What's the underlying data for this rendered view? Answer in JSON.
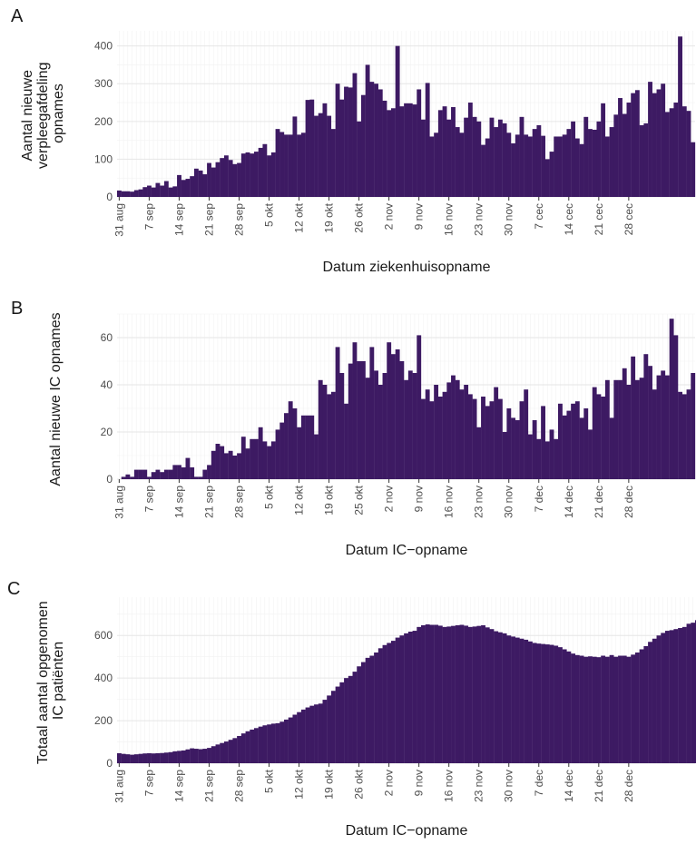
{
  "bar_color": "#3d1a63",
  "chart_data": [
    {
      "panel": "A",
      "type": "bar",
      "xlabel": "Datum ziekenhuisopname",
      "ylabel": [
        "Aantal nieuwe",
        "verpleegafdeling",
        "opnames"
      ],
      "ylim": [
        0,
        440
      ],
      "yticks": [
        0,
        100,
        200,
        300,
        400
      ],
      "xticks": [
        "31 aug",
        "7 sep",
        "14 sep",
        "21 sep",
        "28 sep",
        "5 okt",
        "12 okt",
        "19 okt",
        "26 okt",
        "2 nov",
        "9 nov",
        "16 nov",
        "23 nov",
        "30 nov",
        "7 cec",
        "14 cec",
        "21 cec",
        "28 cec"
      ],
      "grid": true,
      "start_date": "2020-08-31",
      "values": [
        17,
        15,
        15,
        14,
        18,
        20,
        26,
        30,
        25,
        37,
        30,
        42,
        25,
        28,
        58,
        45,
        48,
        55,
        75,
        70,
        60,
        90,
        78,
        92,
        103,
        110,
        98,
        87,
        90,
        115,
        118,
        115,
        120,
        130,
        140,
        110,
        118,
        180,
        172,
        165,
        165,
        213,
        165,
        170,
        257,
        258,
        215,
        222,
        248,
        215,
        180,
        300,
        258,
        292,
        290,
        328,
        200,
        270,
        350,
        305,
        300,
        285,
        255,
        230,
        235,
        400,
        240,
        248,
        248,
        245,
        285,
        205,
        302,
        160,
        170,
        230,
        240,
        205,
        238,
        185,
        170,
        210,
        250,
        212,
        200,
        138,
        155,
        210,
        185,
        205,
        195,
        170,
        142,
        165,
        212,
        165,
        160,
        180,
        190,
        162,
        100,
        120,
        160,
        160,
        165,
        180,
        200,
        155,
        140,
        212,
        180,
        178,
        200,
        248,
        160,
        185,
        218,
        262,
        220,
        250,
        275,
        283,
        190,
        195,
        305,
        275,
        285,
        300,
        225,
        235,
        250,
        425,
        240,
        228,
        145
      ]
    },
    {
      "panel": "B",
      "type": "bar",
      "xlabel": "Datum IC−opname",
      "ylabel": [
        "Aantal nieuwe IC opnames"
      ],
      "ylim": [
        0,
        70
      ],
      "yticks": [
        0,
        20,
        40,
        60
      ],
      "xticks": [
        "31 aug",
        "7 sep",
        "14 sep",
        "21 sep",
        "28 sep",
        "5 okt",
        "12 okt",
        "19 okt",
        "25 okt",
        "2 nov",
        "9 nov",
        "16 nov",
        "23 nov",
        "30 nov",
        "7 dec",
        "14 dec",
        "21 dec",
        "28 dec"
      ],
      "grid": true,
      "start_date": "2020-08-31",
      "values": [
        0,
        1,
        2,
        1,
        4,
        4,
        4,
        1,
        3,
        4,
        3,
        4,
        4,
        6,
        6,
        5,
        9,
        5,
        1,
        1,
        4,
        6,
        12,
        15,
        14,
        11,
        12,
        10,
        11,
        18,
        13,
        17,
        17,
        22,
        16,
        14,
        16,
        21,
        24,
        28,
        33,
        30,
        22,
        27,
        27,
        27,
        19,
        42,
        40,
        36,
        37,
        56,
        45,
        32,
        49,
        58,
        50,
        50,
        43,
        56,
        46,
        40,
        45,
        58,
        53,
        55,
        50,
        42,
        46,
        45,
        61,
        34,
        38,
        33,
        40,
        35,
        37,
        41,
        44,
        42,
        38,
        40,
        36,
        34,
        22,
        35,
        31,
        33,
        39,
        34,
        20,
        30,
        26,
        25,
        33,
        38,
        19,
        25,
        17,
        31,
        16,
        21,
        17,
        32,
        27,
        29,
        32,
        33,
        26,
        30,
        21,
        39,
        36,
        35,
        42,
        26,
        42,
        42,
        47,
        40,
        52,
        42,
        43,
        53,
        48,
        38,
        44,
        46,
        44,
        68,
        61,
        37,
        36,
        38,
        45
      ]
    },
    {
      "panel": "C",
      "type": "bar",
      "xlabel": "Datum IC−opname",
      "ylabel": [
        "Totaal aantal opgenomen",
        "IC patiënten"
      ],
      "ylim": [
        0,
        780
      ],
      "yticks": [
        0,
        200,
        400,
        600
      ],
      "xticks": [
        "31 aug",
        "7 sep",
        "14 sep",
        "21 sep",
        "28 sep",
        "5 okt",
        "12 okt",
        "19 okt",
        "26 okt",
        "2 nov",
        "9 nov",
        "16 nov",
        "23 nov",
        "30 nov",
        "7 dec",
        "14 dec",
        "21 dec",
        "28 dec"
      ],
      "grid": true,
      "start_date": "2020-08-31",
      "values": [
        47,
        44,
        42,
        40,
        42,
        44,
        46,
        47,
        46,
        47,
        48,
        50,
        52,
        56,
        58,
        60,
        65,
        70,
        68,
        66,
        68,
        72,
        80,
        88,
        95,
        102,
        110,
        118,
        128,
        140,
        150,
        158,
        165,
        172,
        178,
        182,
        186,
        188,
        195,
        205,
        215,
        228,
        240,
        252,
        262,
        270,
        276,
        280,
        298,
        318,
        340,
        360,
        380,
        400,
        410,
        430,
        455,
        475,
        495,
        505,
        520,
        540,
        555,
        565,
        575,
        590,
        600,
        610,
        618,
        622,
        640,
        648,
        652,
        650,
        650,
        646,
        640,
        642,
        645,
        648,
        650,
        646,
        640,
        642,
        645,
        648,
        638,
        630,
        620,
        615,
        610,
        600,
        595,
        590,
        585,
        580,
        572,
        565,
        562,
        560,
        558,
        556,
        552,
        545,
        535,
        525,
        515,
        508,
        505,
        500,
        502,
        500,
        498,
        505,
        500,
        508,
        500,
        505,
        505,
        500,
        510,
        520,
        535,
        550,
        570,
        585,
        600,
        612,
        622,
        625,
        630,
        635,
        640,
        655,
        660,
        672,
        690,
        710,
        735,
        740,
        738,
        732,
        740
      ]
    }
  ]
}
